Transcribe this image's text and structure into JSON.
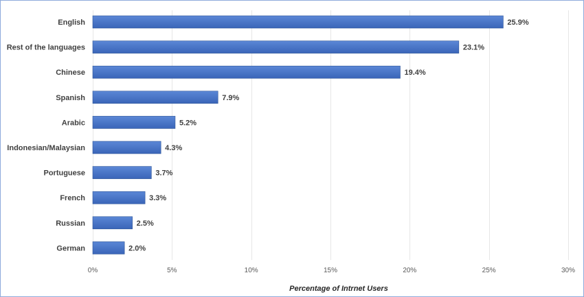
{
  "chart_data": {
    "type": "bar",
    "orientation": "horizontal",
    "categories": [
      "English",
      "Rest of the languages",
      "Chinese",
      "Spanish",
      "Arabic",
      "Indonesian/Malaysian",
      "Portuguese",
      "French",
      "Russian",
      "German"
    ],
    "values": [
      25.9,
      23.1,
      19.4,
      7.9,
      5.2,
      4.3,
      3.7,
      3.3,
      2.5,
      2.0
    ],
    "value_labels": [
      "25.9%",
      "23.1%",
      "19.4%",
      "7.9%",
      "5.2%",
      "4.3%",
      "3.7%",
      "3.3%",
      "2.5%",
      "2.0%"
    ],
    "xlim": [
      0,
      30
    ],
    "xticks": [
      0,
      5,
      10,
      15,
      20,
      25,
      30
    ],
    "xtick_labels": [
      "0%",
      "5%",
      "10%",
      "15%",
      "20%",
      "25%",
      "30%"
    ],
    "xlabel": "Percentage of Intrnet Users",
    "ylabel": "",
    "title": "",
    "grid": true,
    "legend": "none",
    "colors": {
      "bar_top": "#5b87d6",
      "bar_bottom": "#3a65b8",
      "bar_stroke": "#2f5597",
      "frame": "#8eaadb",
      "grid": "#e6e6e6"
    }
  }
}
